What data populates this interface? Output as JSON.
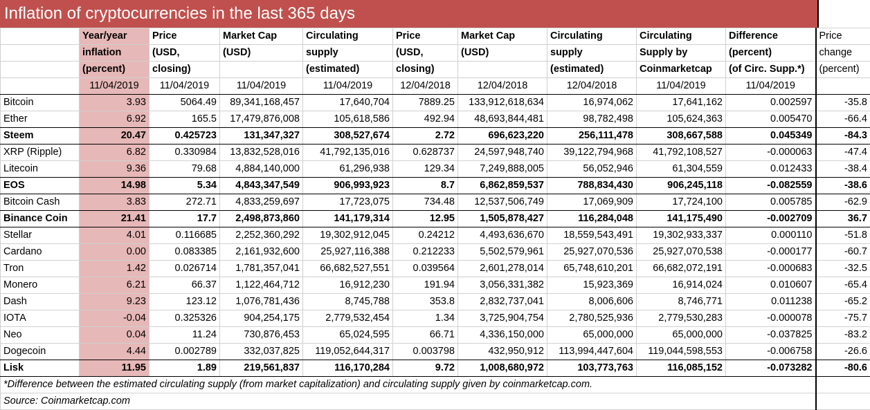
{
  "title": "Inflation of cryptocurrencies in the last 365 days",
  "columns": [
    {
      "l1": "Year/year",
      "l2": "inflation",
      "l3": "(percent)"
    },
    {
      "l1": "Price",
      "l2": "(USD,",
      "l3": "closing)"
    },
    {
      "l1": "Market Cap",
      "l2": "(USD)",
      "l3": ""
    },
    {
      "l1": "Circulating",
      "l2": "supply",
      "l3": "(estimated)"
    },
    {
      "l1": "Price",
      "l2": "(USD,",
      "l3": "closing)"
    },
    {
      "l1": "Market Cap",
      "l2": "(USD)",
      "l3": ""
    },
    {
      "l1": "Circulating",
      "l2": "supply",
      "l3": "(estimated)"
    },
    {
      "l1": "Circulating",
      "l2": "Supply by",
      "l3": "Coinmarketcap"
    },
    {
      "l1": "Difference",
      "l2": "(percent)",
      "l3": "(of Circ. Supp.*)"
    },
    {
      "l1": "Price",
      "l2": "change",
      "l3": "(percent)"
    }
  ],
  "dates": [
    "11/04/2019",
    "11/04/2019",
    "11/04/2019",
    "11/04/2019",
    "12/04/2018",
    "12/04/2018",
    "12/04/2018",
    "11/04/2019",
    "11/04/2019",
    ""
  ],
  "rows": [
    {
      "name": "Bitcoin",
      "bold": false,
      "vals": [
        "3.93",
        "5064.49",
        "89,341,168,457",
        "17,640,704",
        "7889.25",
        "133,912,618,634",
        "16,974,062",
        "17,641,162",
        "0.002597",
        "-35.8"
      ]
    },
    {
      "name": "Ether",
      "bold": false,
      "vals": [
        "6.92",
        "165.5",
        "17,479,876,008",
        "105,618,586",
        "492.94",
        "48,693,844,481",
        "98,782,498",
        "105,624,363",
        "0.005470",
        "-66.4"
      ]
    },
    {
      "name": "Steem",
      "bold": true,
      "vals": [
        "20.47",
        "0.425723",
        "131,347,327",
        "308,527,674",
        "2.72",
        "696,623,220",
        "256,111,478",
        "308,667,588",
        "0.045349",
        "-84.3"
      ]
    },
    {
      "name": "XRP (Ripple)",
      "bold": false,
      "vals": [
        "6.82",
        "0.330984",
        "13,832,528,016",
        "41,792,135,016",
        "0.628737",
        "24,597,948,740",
        "39,122,794,968",
        "41,792,108,527",
        "-0.000063",
        "-47.4"
      ]
    },
    {
      "name": "Litecoin",
      "bold": false,
      "vals": [
        "9.36",
        "79.68",
        "4,884,140,000",
        "61,296,938",
        "129.34",
        "7,249,888,005",
        "56,052,946",
        "61,304,559",
        "0.012433",
        "-38.4"
      ]
    },
    {
      "name": "EOS",
      "bold": true,
      "vals": [
        "14.98",
        "5.34",
        "4,843,347,549",
        "906,993,923",
        "8.7",
        "6,862,859,537",
        "788,834,430",
        "906,245,118",
        "-0.082559",
        "-38.6"
      ]
    },
    {
      "name": "Bitcoin Cash",
      "bold": false,
      "vals": [
        "3.83",
        "272.71",
        "4,833,259,697",
        "17,723,075",
        "734.48",
        "12,537,506,749",
        "17,069,909",
        "17,724,100",
        "0.005785",
        "-62.9"
      ]
    },
    {
      "name": "Binance Coin",
      "bold": true,
      "vals": [
        "21.41",
        "17.7",
        "2,498,873,860",
        "141,179,314",
        "12.95",
        "1,505,878,427",
        "116,284,048",
        "141,175,490",
        "-0.002709",
        "36.7"
      ]
    },
    {
      "name": "Stellar",
      "bold": false,
      "vals": [
        "4.01",
        "0.116685",
        "2,252,360,292",
        "19,302,912,045",
        "0.24212",
        "4,493,636,670",
        "18,559,543,491",
        "19,302,933,337",
        "0.000110",
        "-51.8"
      ]
    },
    {
      "name": "Cardano",
      "bold": false,
      "vals": [
        "0.00",
        "0.083385",
        "2,161,932,600",
        "25,927,116,388",
        "0.212233",
        "5,502,579,961",
        "25,927,070,536",
        "25,927,070,538",
        "-0.000177",
        "-60.7"
      ]
    },
    {
      "name": "Tron",
      "bold": false,
      "vals": [
        "1.42",
        "0.026714",
        "1,781,357,041",
        "66,682,527,551",
        "0.039564",
        "2,601,278,014",
        "65,748,610,201",
        "66,682,072,191",
        "-0.000683",
        "-32.5"
      ]
    },
    {
      "name": "Monero",
      "bold": false,
      "vals": [
        "6.21",
        "66.37",
        "1,122,464,712",
        "16,912,230",
        "191.94",
        "3,056,331,382",
        "15,923,369",
        "16,914,024",
        "0.010607",
        "-65.4"
      ]
    },
    {
      "name": "Dash",
      "bold": false,
      "vals": [
        "9.23",
        "123.12",
        "1,076,781,436",
        "8,745,788",
        "353.8",
        "2,832,737,041",
        "8,006,606",
        "8,746,771",
        "0.011238",
        "-65.2"
      ]
    },
    {
      "name": "IOTA",
      "bold": false,
      "vals": [
        "-0.04",
        "0.325326",
        "904,254,175",
        "2,779,532,454",
        "1.34",
        "3,725,904,754",
        "2,780,525,936",
        "2,779,530,283",
        "-0.000078",
        "-75.7"
      ]
    },
    {
      "name": "Neo",
      "bold": false,
      "vals": [
        "0.04",
        "11.24",
        "730,876,453",
        "65,024,595",
        "66.71",
        "4,336,150,000",
        "65,000,000",
        "65,000,000",
        "-0.037825",
        "-83.2"
      ]
    },
    {
      "name": "Dogecoin",
      "bold": false,
      "vals": [
        "4.44",
        "0.002789",
        "332,037,825",
        "119,052,644,317",
        "0.003798",
        "432,950,912",
        "113,994,447,604",
        "119,044,598,553",
        "-0.006758",
        "-26.6"
      ]
    },
    {
      "name": "Lisk",
      "bold": true,
      "vals": [
        "11.95",
        "1.89",
        "219,561,837",
        "116,170,284",
        "9.72",
        "1,008,680,972",
        "103,773,763",
        "116,085,152",
        "-0.073282",
        "-80.6"
      ]
    }
  ],
  "footnote": "*Difference between the estimated circulating supply (from market capitalization) and circulating supply given by coinmarketcap.com.",
  "source": "Source: Coinmarketcap.com",
  "colors": {
    "title_bg": "#c0504d",
    "title_text": "#ffffff",
    "highlight": "#e6b8b7"
  }
}
